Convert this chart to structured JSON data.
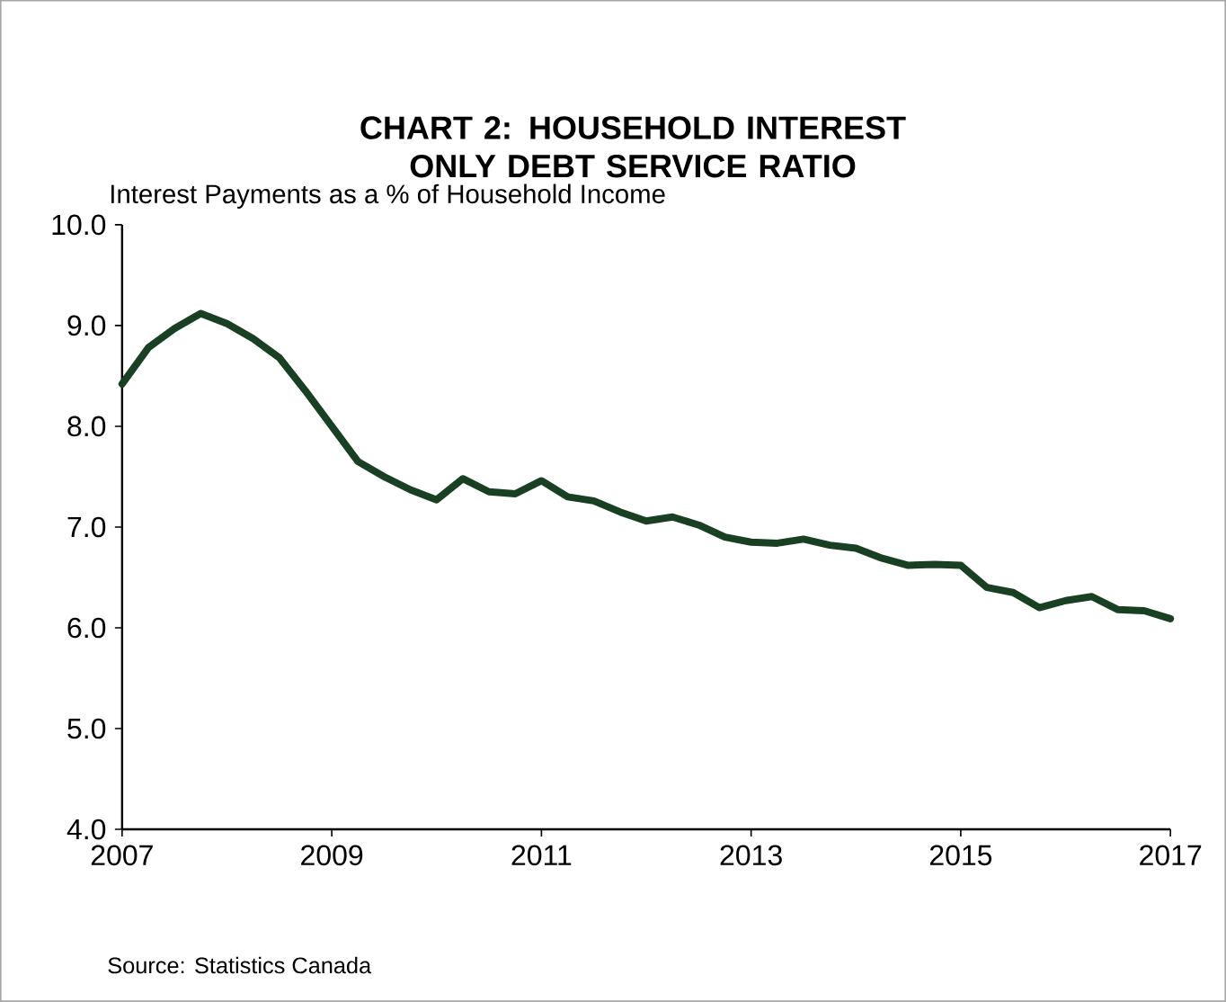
{
  "chart_data": {
    "type": "line",
    "title": "CHART 2: HOUSEHOLD INTEREST ONLY DEBT SERVICE RATIO",
    "ylabel": "Interest Payments as a % of Household Income",
    "annotations": [
      "Source: Statistics Canada"
    ],
    "x": [
      2007.0,
      2007.25,
      2007.5,
      2007.75,
      2008.0,
      2008.25,
      2008.5,
      2008.75,
      2009.0,
      2009.25,
      2009.5,
      2009.75,
      2010.0,
      2010.25,
      2010.5,
      2010.75,
      2011.0,
      2011.25,
      2011.5,
      2011.75,
      2012.0,
      2012.25,
      2012.5,
      2012.75,
      2013.0,
      2013.25,
      2013.5,
      2013.75,
      2014.0,
      2014.25,
      2014.5,
      2014.75,
      2015.0,
      2015.25,
      2015.5,
      2015.75,
      2016.0,
      2016.25,
      2016.5,
      2016.75,
      2017.0
    ],
    "series": [
      {
        "color": "#1a4024",
        "values": [
          8.42,
          8.78,
          8.97,
          9.12,
          9.02,
          8.87,
          8.68,
          8.35,
          8.0,
          7.65,
          7.5,
          7.37,
          7.27,
          7.48,
          7.35,
          7.33,
          7.46,
          7.3,
          7.26,
          7.15,
          7.06,
          7.1,
          7.02,
          6.9,
          6.85,
          6.84,
          6.88,
          6.82,
          6.79,
          6.69,
          6.62,
          6.63,
          6.62,
          6.4,
          6.35,
          6.2,
          6.27,
          6.31,
          6.18,
          6.17,
          6.09
        ]
      }
    ],
    "xlim": [
      2007,
      2017
    ],
    "xticks": [
      2007,
      2009,
      2011,
      2013,
      2015,
      2017
    ],
    "ylim": [
      4.0,
      10.0
    ],
    "yticks": [
      {
        "value": 4,
        "label": "4.0"
      },
      {
        "value": 5,
        "label": "5.0"
      },
      {
        "value": 6,
        "label": "6.0"
      },
      {
        "value": 7,
        "label": "7.0"
      },
      {
        "value": 8,
        "label": "8.0"
      },
      {
        "value": 9,
        "label": "9.0"
      },
      {
        "value": 10,
        "label": "10.0"
      }
    ],
    "grid": false,
    "line_style": "solid"
  }
}
